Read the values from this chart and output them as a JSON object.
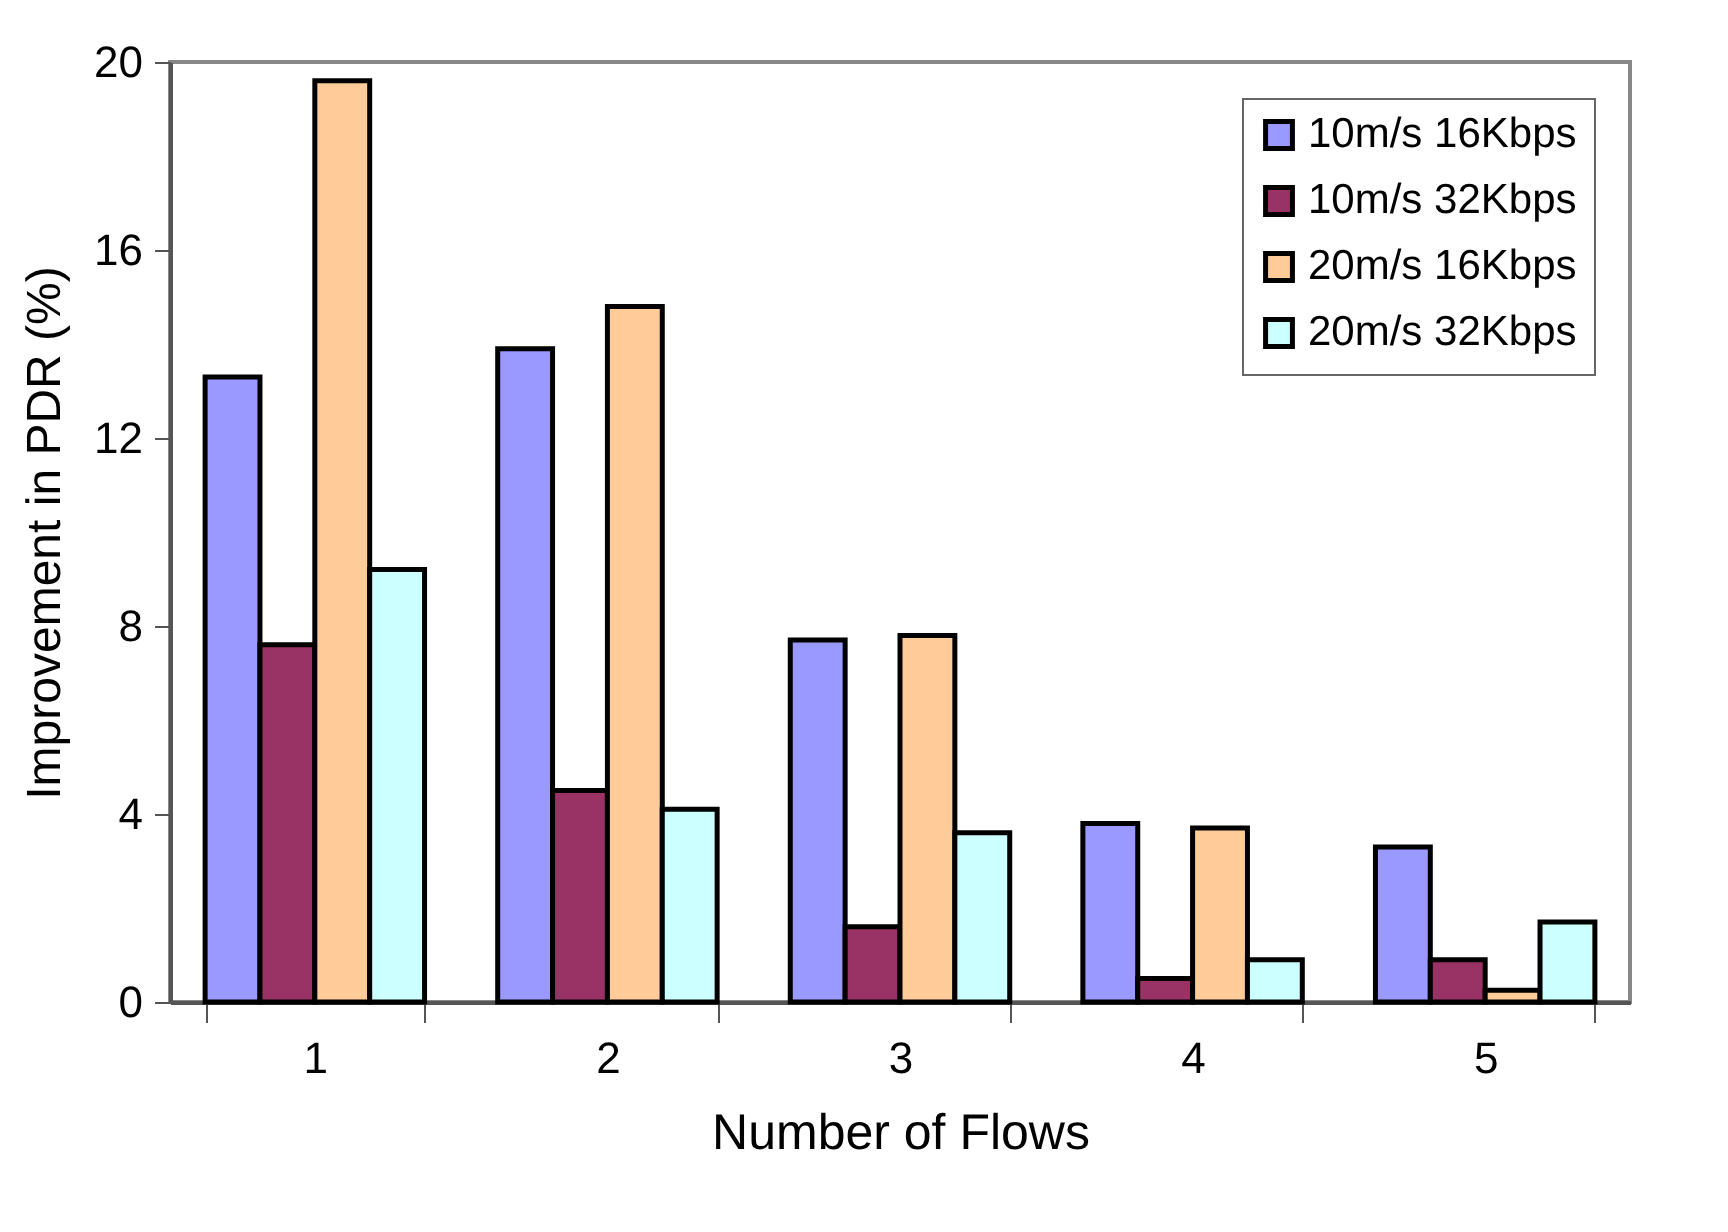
{
  "chart_data": {
    "type": "bar",
    "xlabel": "Number of Flows",
    "ylabel": "Improvement in PDR (%)",
    "categories": [
      "1",
      "2",
      "3",
      "4",
      "5"
    ],
    "series": [
      {
        "name": "10m/s 16Kbps",
        "color": "#9999ff",
        "values": [
          13.3,
          13.9,
          7.7,
          3.8,
          3.3
        ]
      },
      {
        "name": "10m/s 32Kbps",
        "color": "#993366",
        "values": [
          7.6,
          4.5,
          1.6,
          0.5,
          0.9
        ]
      },
      {
        "name": "20m/s 16Kbps",
        "color": "#ffcc99",
        "values": [
          19.6,
          14.8,
          7.8,
          3.7,
          0.25
        ]
      },
      {
        "name": "20m/s 32Kbps",
        "color": "#ccffff",
        "values": [
          9.2,
          4.1,
          3.6,
          0.9,
          1.7
        ]
      }
    ],
    "ylim": [
      0,
      20
    ],
    "yticks": [
      0,
      4,
      8,
      12,
      16,
      20
    ],
    "grid": false,
    "legend": "top right"
  }
}
